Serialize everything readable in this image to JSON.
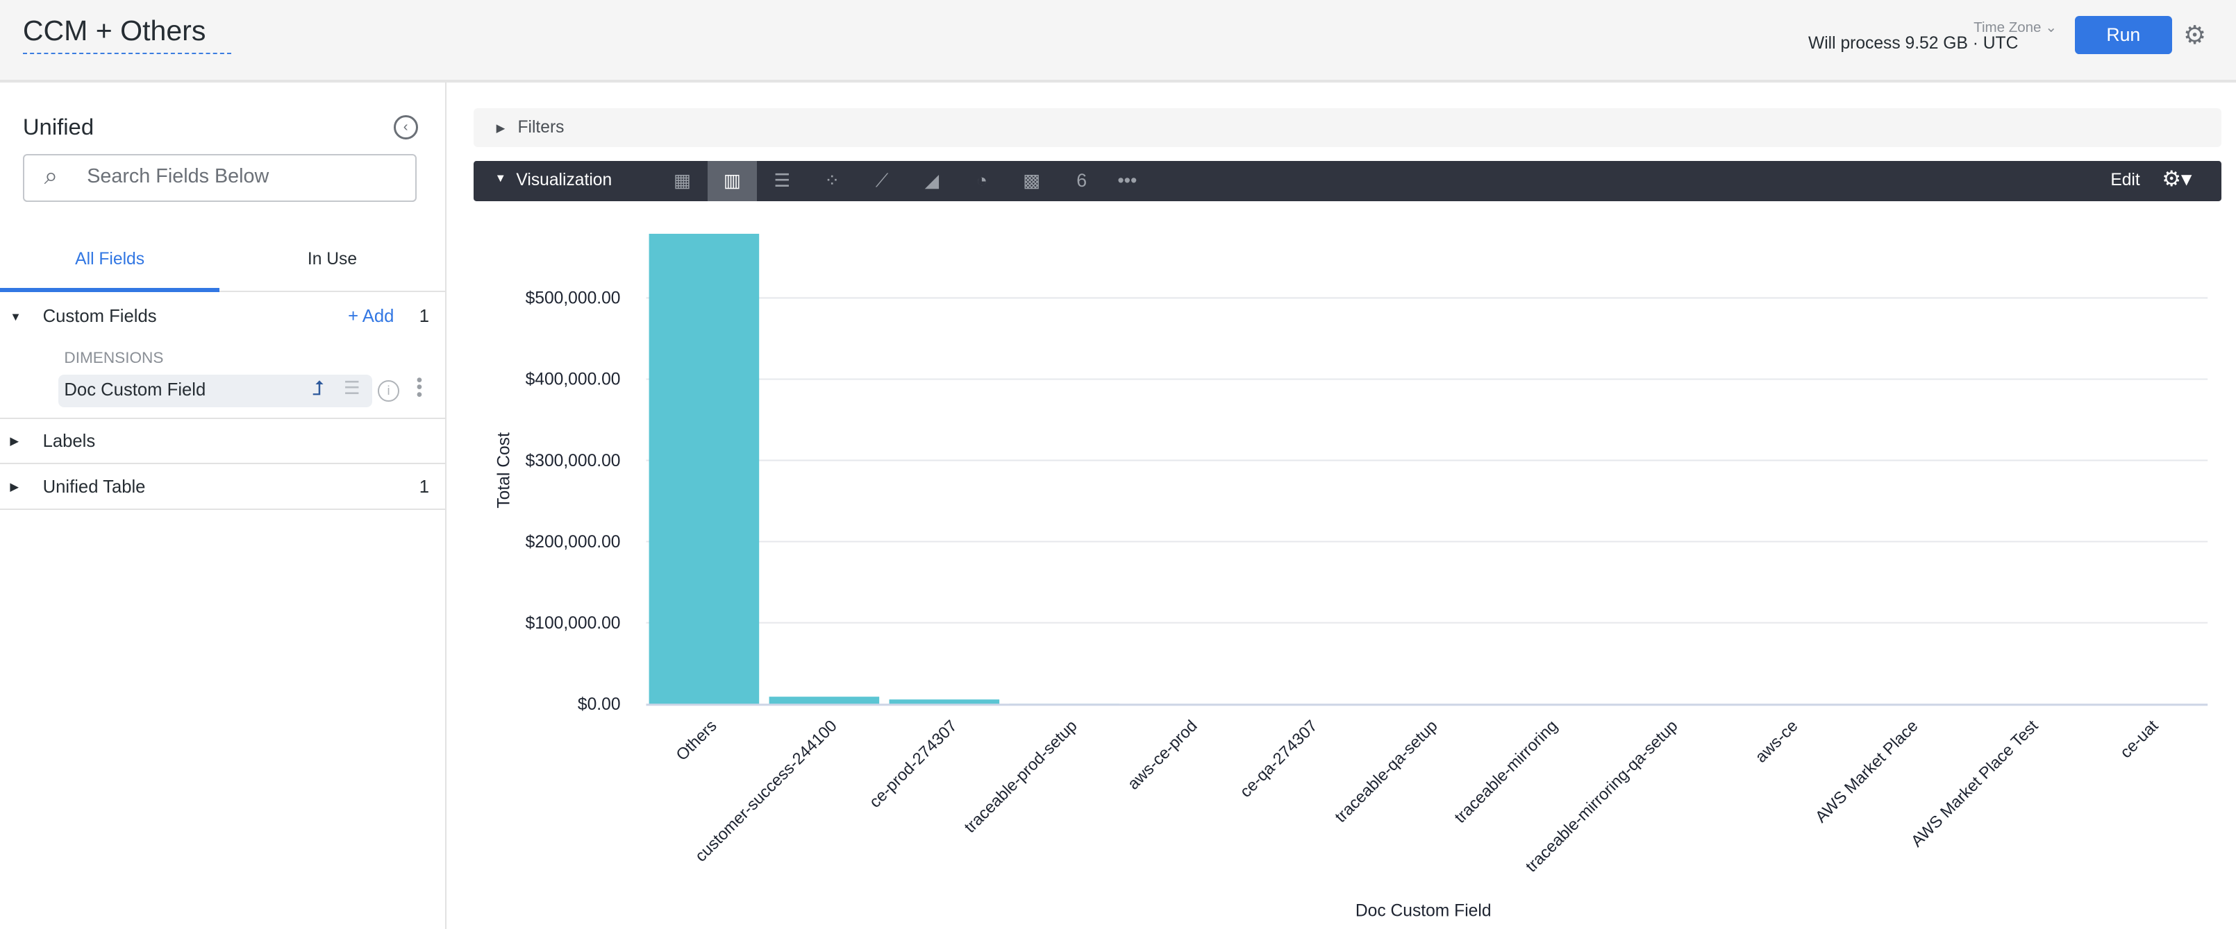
{
  "header": {
    "title": "CCM + Others",
    "time_zone_label": "Time Zone",
    "process_text": "Will process 9.52 GB · UTC",
    "run_label": "Run",
    "settings_icon": "gear-icon"
  },
  "sidebar": {
    "title": "Unified",
    "search_placeholder": "Search Fields Below",
    "tabs": [
      {
        "label": "All Fields",
        "active": true
      },
      {
        "label": "In Use",
        "active": false
      }
    ],
    "sections": [
      {
        "label": "Custom Fields",
        "expanded": true,
        "add_label": "+ Add",
        "count": "1",
        "group": "DIMENSIONS",
        "fields": [
          {
            "label": "Doc Custom Field"
          }
        ]
      },
      {
        "label": "Labels",
        "expanded": false
      },
      {
        "label": "Unified Table",
        "expanded": false,
        "count": "1"
      }
    ]
  },
  "filters": {
    "label": "Filters"
  },
  "visualization": {
    "label": "Visualization",
    "edit_label": "Edit",
    "types": [
      "table",
      "column",
      "bar",
      "scatter",
      "line",
      "area",
      "pie",
      "map",
      "single-value",
      "more"
    ],
    "selected": "column",
    "accent": "#5bc5d3"
  },
  "chart_data": {
    "type": "bar",
    "xlabel": "Doc Custom Field",
    "ylabel": "Total Cost",
    "ylim": [
      0,
      580000
    ],
    "grid": true,
    "yticks": [
      "$0.00",
      "$100,000.00",
      "$200,000.00",
      "$300,000.00",
      "$400,000.00",
      "$500,000.00"
    ],
    "categories": [
      "Others",
      "customer-success-244100",
      "ce-prod-274307",
      "traceable-prod-setup",
      "aws-ce-prod",
      "ce-qa-274307",
      "traceable-qa-setup",
      "traceable-mirroring",
      "traceable-mirroring-qa-setup",
      "aws-ce",
      "AWS Market Place",
      "AWS Market Place Test",
      "ce-uat"
    ],
    "values": [
      579000,
      9000,
      5600,
      300,
      200,
      150,
      100,
      80,
      60,
      40,
      20,
      10,
      5
    ]
  }
}
